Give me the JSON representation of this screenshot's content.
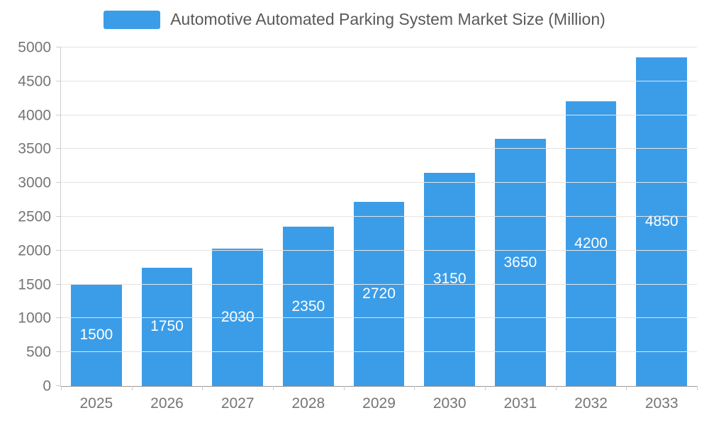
{
  "legend": {
    "label": "Automotive Automated Parking System Market Size (Million)"
  },
  "chart_data": {
    "type": "bar",
    "title": "Automotive Automated Parking System Market Size (Million)",
    "categories": [
      "2025",
      "2026",
      "2027",
      "2028",
      "2029",
      "2030",
      "2031",
      "2032",
      "2033"
    ],
    "values": [
      1500,
      1750,
      2030,
      2350,
      2720,
      3150,
      3650,
      4200,
      4850
    ],
    "xlabel": "",
    "ylabel": "",
    "ylim": [
      0,
      5000
    ],
    "ytick_step": 500,
    "grid": true,
    "legend_position": "top",
    "bar_color": "#3b9de8",
    "value_label_color": "#ffffff",
    "axis_label_color": "#757575"
  }
}
